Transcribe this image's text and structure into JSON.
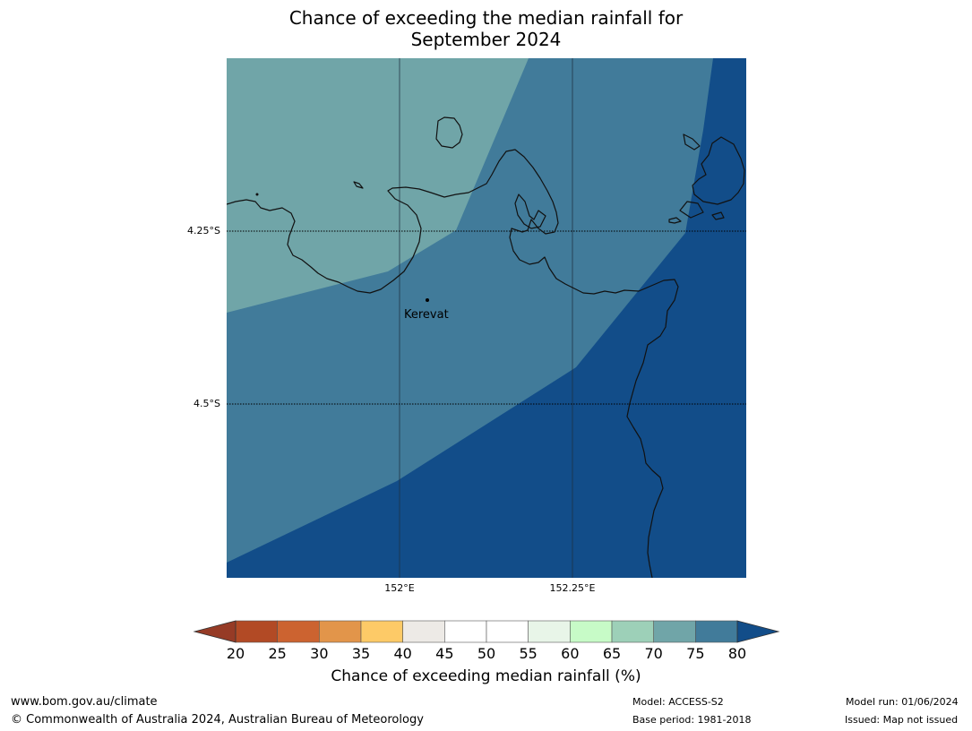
{
  "title_line1": "Chance of exceeding the median rainfall for",
  "title_line2": "September 2024",
  "place": {
    "name": "Kerevat"
  },
  "lat_labels": [
    "4.25°S",
    "4.5°S"
  ],
  "lon_labels": [
    "152°E",
    "152.25°E"
  ],
  "colorbar": {
    "ticks": [
      "20",
      "25",
      "30",
      "35",
      "40",
      "45",
      "50",
      "55",
      "60",
      "65",
      "70",
      "75",
      "80"
    ],
    "colors": [
      "#b24a25",
      "#cc6330",
      "#e2954a",
      "#fdca67",
      "#edeae6",
      "#ffffff",
      "#ffffff",
      "#e8f5e8",
      "#c7fbc7",
      "#9dd0b8",
      "#70a5a8",
      "#417b9a"
    ],
    "under_color": "#963b26",
    "over_color": "#124d89",
    "label": "Chance of exceeding median rainfall (%)"
  },
  "map_colors": {
    "c70_75": "#70a5a8",
    "c75_80": "#417b9a",
    "c80": "#124d89"
  },
  "footer": {
    "url": "www.bom.gov.au/climate",
    "copyright": "© Commonwealth of Australia 2024, Australian Bureau of Meteorology",
    "model": "Model: ACCESS-S2",
    "base_period": "Base period: 1981-2018",
    "model_run": "Model run: 01/06/2024",
    "issued": "Issued: Map not issued"
  }
}
